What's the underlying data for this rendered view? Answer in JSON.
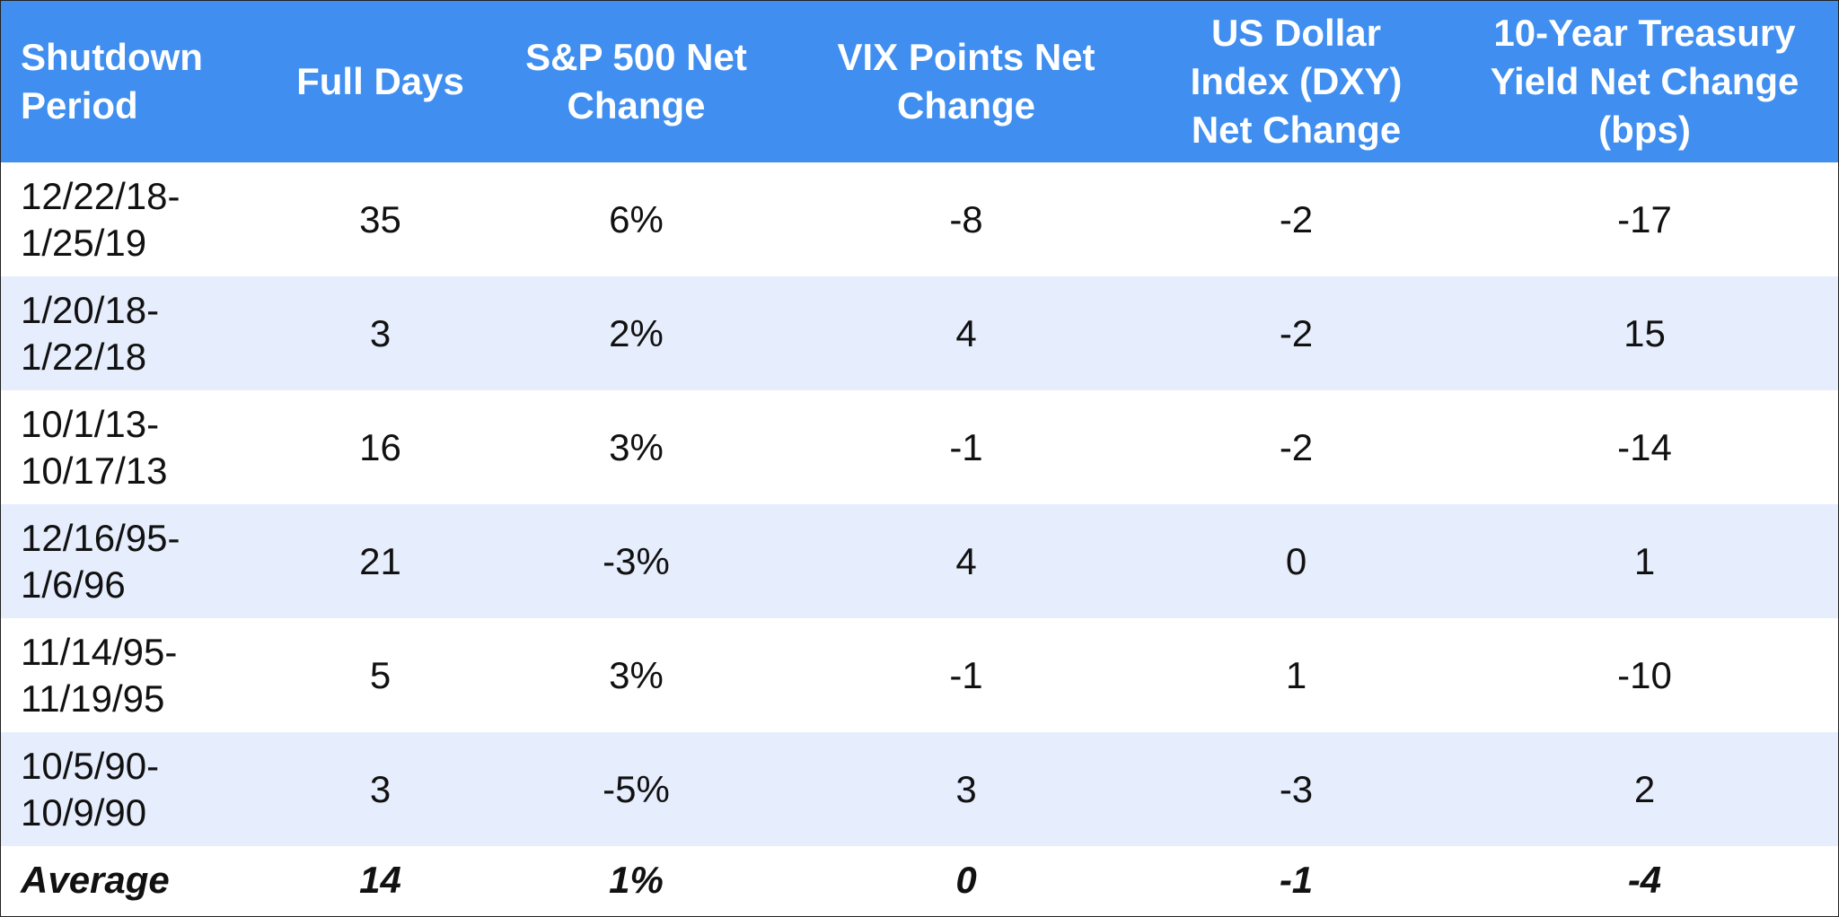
{
  "headers": {
    "period": [
      "Shutdown",
      "Period"
    ],
    "days": [
      "Full Days"
    ],
    "sp500": [
      "S&P 500 Net",
      "Change"
    ],
    "vix": [
      "VIX Points Net",
      "Change"
    ],
    "dxy": [
      "US Dollar",
      "Index (DXY)",
      "Net Change"
    ],
    "treasury": [
      "10-Year Treasury",
      "Yield Net Change",
      "(bps)"
    ]
  },
  "rows": [
    {
      "period": [
        "12/22/18-",
        "1/25/19"
      ],
      "days": "35",
      "sp500": "6%",
      "vix": "-8",
      "dxy": "-2",
      "treasury": "-17"
    },
    {
      "period": [
        "1/20/18-",
        "1/22/18"
      ],
      "days": "3",
      "sp500": "2%",
      "vix": "4",
      "dxy": "-2",
      "treasury": "15"
    },
    {
      "period": [
        "10/1/13-",
        "10/17/13"
      ],
      "days": "16",
      "sp500": "3%",
      "vix": "-1",
      "dxy": "-2",
      "treasury": "-14"
    },
    {
      "period": [
        "12/16/95-",
        "1/6/96"
      ],
      "days": "21",
      "sp500": "-3%",
      "vix": "4",
      "dxy": "0",
      "treasury": "1"
    },
    {
      "period": [
        "11/14/95-",
        "11/19/95"
      ],
      "days": "5",
      "sp500": "3%",
      "vix": "-1",
      "dxy": "1",
      "treasury": "-10"
    },
    {
      "period": [
        "10/5/90-",
        "10/9/90"
      ],
      "days": "3",
      "sp500": "-5%",
      "vix": "3",
      "dxy": "-3",
      "treasury": "2"
    }
  ],
  "average": {
    "label": "Average",
    "days": "14",
    "sp500": "1%",
    "vix": "0",
    "dxy": "-1",
    "treasury": "-4"
  },
  "colors": {
    "header_bg": "#3f8ef0",
    "header_text": "#ffffff",
    "row_alt_bg": "#e6edfc",
    "row_bg": "#ffffff"
  }
}
